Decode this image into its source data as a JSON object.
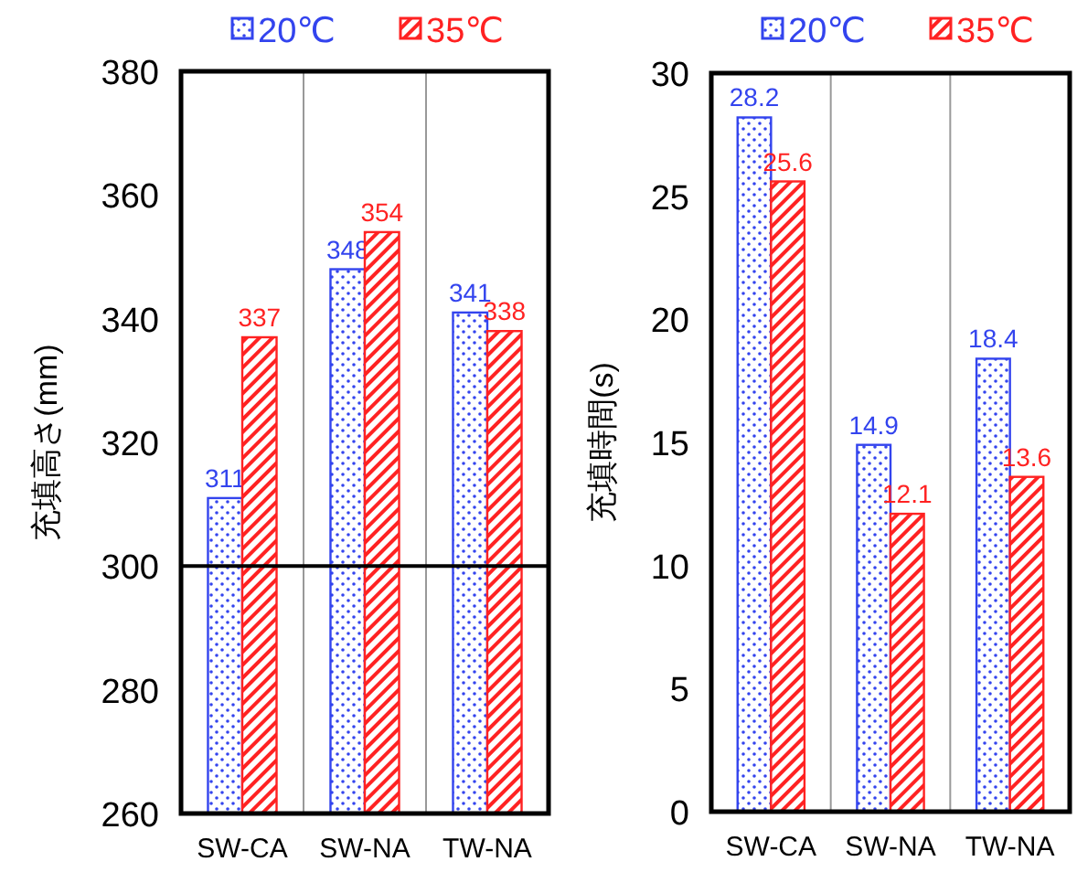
{
  "chart_data": [
    {
      "type": "bar",
      "ylabel": "充填高さ(mm)",
      "categories": [
        "SW-CA",
        "SW-NA",
        "TW-NA"
      ],
      "series": [
        {
          "name": "20℃",
          "color": "#3344ee",
          "values": [
            311,
            348,
            341
          ]
        },
        {
          "name": "35℃",
          "color": "#ff2222",
          "values": [
            337,
            354,
            338
          ]
        }
      ],
      "ylim": [
        260,
        380
      ],
      "yticks": [
        260,
        280,
        300,
        320,
        340,
        360,
        380
      ],
      "grid": "x",
      "legend": "top",
      "data_labels": true,
      "ref_lines": [
        {
          "axis": "y",
          "value": 300,
          "color": "#000000"
        }
      ]
    },
    {
      "type": "bar",
      "ylabel": "充填時間(s)",
      "categories": [
        "SW-CA",
        "SW-NA",
        "TW-NA"
      ],
      "series": [
        {
          "name": "20℃",
          "color": "#3344ee",
          "values": [
            28.2,
            14.9,
            18.4
          ]
        },
        {
          "name": "35℃",
          "color": "#ff2222",
          "values": [
            25.6,
            12.1,
            13.6
          ]
        }
      ],
      "ylim": [
        0,
        30
      ],
      "yticks": [
        0,
        5,
        10,
        15,
        20,
        25,
        30
      ],
      "grid": "x",
      "legend": "top",
      "data_labels": true
    }
  ]
}
